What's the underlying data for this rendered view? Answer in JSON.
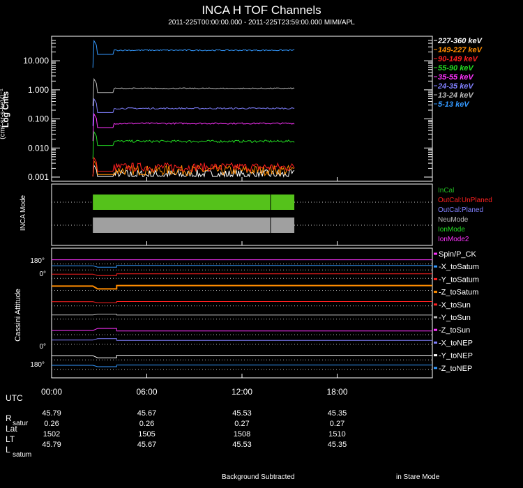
{
  "title": "INCA H TOF Channels",
  "subtitle": "2011-225T00:00:00.000 - 2011-225T23:59:00.000 MIMI/APL",
  "colors": {
    "background": "#000000",
    "axes": "#ffffff",
    "grid": "#ffffff"
  },
  "chart_data": [
    {
      "type": "line",
      "ylabel": "Log Cnts",
      "ylabel_units": "(cm²-sr-s-keV)⁻¹",
      "yscale": "log",
      "ylim": [
        0.001,
        50
      ],
      "yticks": [
        "0.001",
        "0.010",
        "0.100",
        "1.000",
        "10.000"
      ],
      "xlim_hours": [
        0,
        24
      ],
      "data_start_hour": 2.6,
      "data_end_hour": 15.3,
      "series": [
        {
          "name": "227-360 keV",
          "color": "#ffffff",
          "level": 0.0012,
          "noise": 0.35
        },
        {
          "name": "149-227 keV",
          "color": "#ff8c00",
          "level": 0.0017,
          "noise": 0.35
        },
        {
          "name": "90-149 keV",
          "color": "#ff2020",
          "level": 0.0022,
          "noise": 0.3
        },
        {
          "name": "55-90 keV",
          "color": "#22dd22",
          "level": 0.017,
          "noise": 0.08
        },
        {
          "name": "35-55 keV",
          "color": "#ff33ff",
          "level": 0.07,
          "noise": 0.05
        },
        {
          "name": "24-35 keV",
          "color": "#8080ff",
          "level": 0.23,
          "noise": 0.05
        },
        {
          "name": "13-24 keV",
          "color": "#bbbbbb",
          "level": 1.12,
          "noise": 0.04
        },
        {
          "name": "5-13 keV",
          "color": "#3399ff",
          "level": 23.0,
          "noise": 0.04
        }
      ]
    },
    {
      "type": "bar",
      "ylabel": "INCA Mode",
      "legend": [
        {
          "label": "InCal",
          "color": "#22bb22"
        },
        {
          "label": "OutCal:UnPlaned",
          "color": "#ff2020"
        },
        {
          "label": "OutCal:Planed",
          "color": "#8080ff"
        },
        {
          "label": "NeuMode",
          "color": "#bbbbbb"
        },
        {
          "label": "IonMode",
          "color": "#22dd22"
        },
        {
          "label": "IonMode2",
          "color": "#ff33ff"
        }
      ],
      "bars": [
        {
          "mode": "IonMode",
          "color": "#55c21b",
          "start_hour": 2.6,
          "end_hour": 15.3,
          "divider_hour": 13.8
        },
        {
          "mode": "NeuMode",
          "color": "#a0a0a0",
          "start_hour": 2.6,
          "end_hour": 15.3,
          "divider_hour": 13.8
        }
      ]
    },
    {
      "type": "line",
      "ylabel": "Cassini Attitude",
      "ytick_top": "180°",
      "ytick_top2": "0°",
      "ytick_bottom": "180°",
      "ytick_bottom2": "0°",
      "series": [
        {
          "name": "Spin/P_CK",
          "color": "#ff33ff",
          "offset": 0.05,
          "step": 0
        },
        {
          "name": "-X_toSatum",
          "color": "#3399ff",
          "offset": 0.1,
          "step": 0.02
        },
        {
          "name": "-Y_toSatum",
          "color": "#ff2020",
          "offset": 0.17,
          "step": 0.02
        },
        {
          "name": "-Z_toSatum",
          "color": "#ff8c00",
          "offset": 0.27,
          "step": 0.04
        },
        {
          "name": "-X_toSun",
          "color": "#ff2020",
          "offset": 0.4,
          "step": 0.015
        },
        {
          "name": "-Y_toSun",
          "color": "#bbbbbb",
          "offset": 0.51,
          "step": -0.01
        },
        {
          "name": "-Z_toSun",
          "color": "#ff33ff",
          "offset": 0.64,
          "step": -0.03
        },
        {
          "name": "-X_toNEP",
          "color": "#8080ff",
          "offset": 0.72,
          "step": -0.02
        },
        {
          "name": "-Y_toNEP",
          "color": "#ffffff",
          "offset": 0.85,
          "step": 0.03
        },
        {
          "name": "-Z_toNEP",
          "color": "#3399ff",
          "offset": 0.93,
          "step": 0.02
        }
      ]
    }
  ],
  "time_axis": {
    "ticks": [
      "00:00",
      "06:00",
      "12:00",
      "18:00"
    ],
    "utc_label": "UTC"
  },
  "ephemeris": {
    "rows": [
      {
        "label": "R",
        "sub": "satur",
        "values": [
          "45.79",
          "45.67",
          "45.53",
          "45.35"
        ]
      },
      {
        "label": "Lat",
        "sub": "",
        "values": [
          "0.26",
          "0.26",
          "0.27",
          "0.27"
        ]
      },
      {
        "label": "LT",
        "sub": "",
        "values": [
          "1502",
          "1505",
          "1508",
          "1510"
        ]
      },
      {
        "label": "L",
        "sub": "satum",
        "values": [
          "45.79",
          "45.67",
          "45.53",
          "45.35"
        ]
      }
    ]
  },
  "footer": {
    "left": "Background Subtracted",
    "right": "in Stare Mode"
  }
}
